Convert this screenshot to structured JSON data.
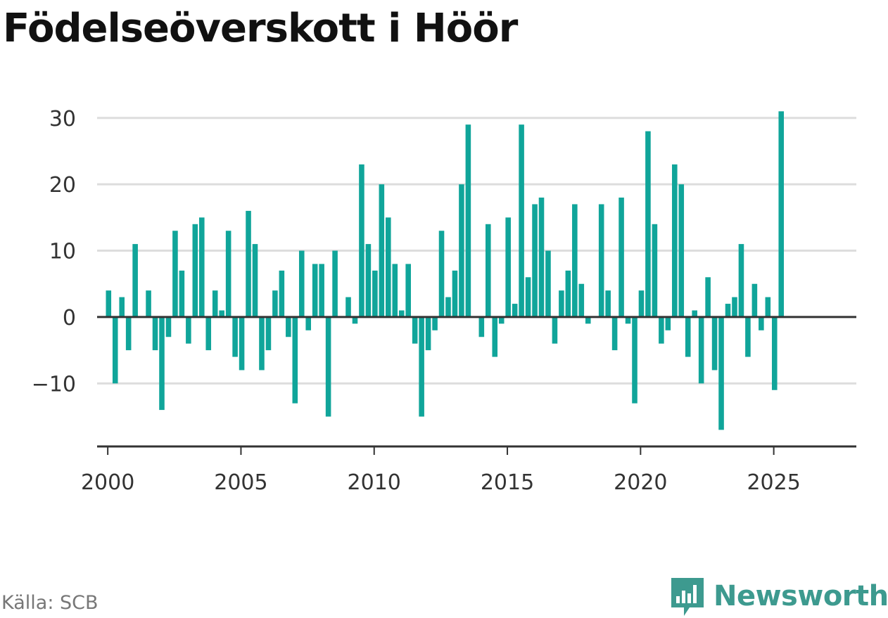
{
  "title": "Födelseöverskott i Höör",
  "source": "Källa: SCB",
  "brand": "Newsworthy",
  "colors": {
    "bar": "#10a59a",
    "grid": "#dddddd",
    "axis": "#333333",
    "brand": "#3d9a8f"
  },
  "chart_data": {
    "type": "bar",
    "xlabel": "",
    "ylabel": "",
    "ylim": [
      -19.5,
      34
    ],
    "xlim": [
      1999.6,
      2028.1
    ],
    "y_ticks": [
      30,
      20,
      10,
      0,
      -10
    ],
    "y_tick_labels": [
      "30",
      "20",
      "10",
      "0",
      "−10"
    ],
    "x_ticks": [
      2000,
      2005,
      2010,
      2015,
      2020,
      2025
    ],
    "x_tick_labels": [
      "2000",
      "2005",
      "2010",
      "2015",
      "2020",
      "2025"
    ],
    "grid": true,
    "frequency": "quarterly",
    "start_year": 2000,
    "values": [
      4,
      -10,
      3,
      -5,
      11,
      0,
      4,
      -5,
      -14,
      -3,
      13,
      7,
      -4,
      14,
      15,
      -5,
      4,
      1,
      13,
      -6,
      -8,
      16,
      11,
      -8,
      -5,
      4,
      7,
      -3,
      -13,
      10,
      -2,
      8,
      8,
      -15,
      10,
      0,
      3,
      -1,
      23,
      11,
      7,
      20,
      15,
      8,
      1,
      8,
      -4,
      -15,
      -5,
      -2,
      13,
      3,
      7,
      20,
      29,
      0,
      -3,
      14,
      -6,
      -1,
      15,
      2,
      29,
      6,
      17,
      18,
      10,
      -4,
      4,
      7,
      17,
      5,
      -1,
      0,
      17,
      4,
      -5,
      18,
      -1,
      -13,
      4,
      28,
      14,
      -4,
      -2,
      23,
      20,
      -6,
      1,
      -10,
      6,
      -8,
      -17,
      2,
      3,
      11,
      -6,
      5,
      -2,
      3,
      -11,
      31
    ]
  }
}
